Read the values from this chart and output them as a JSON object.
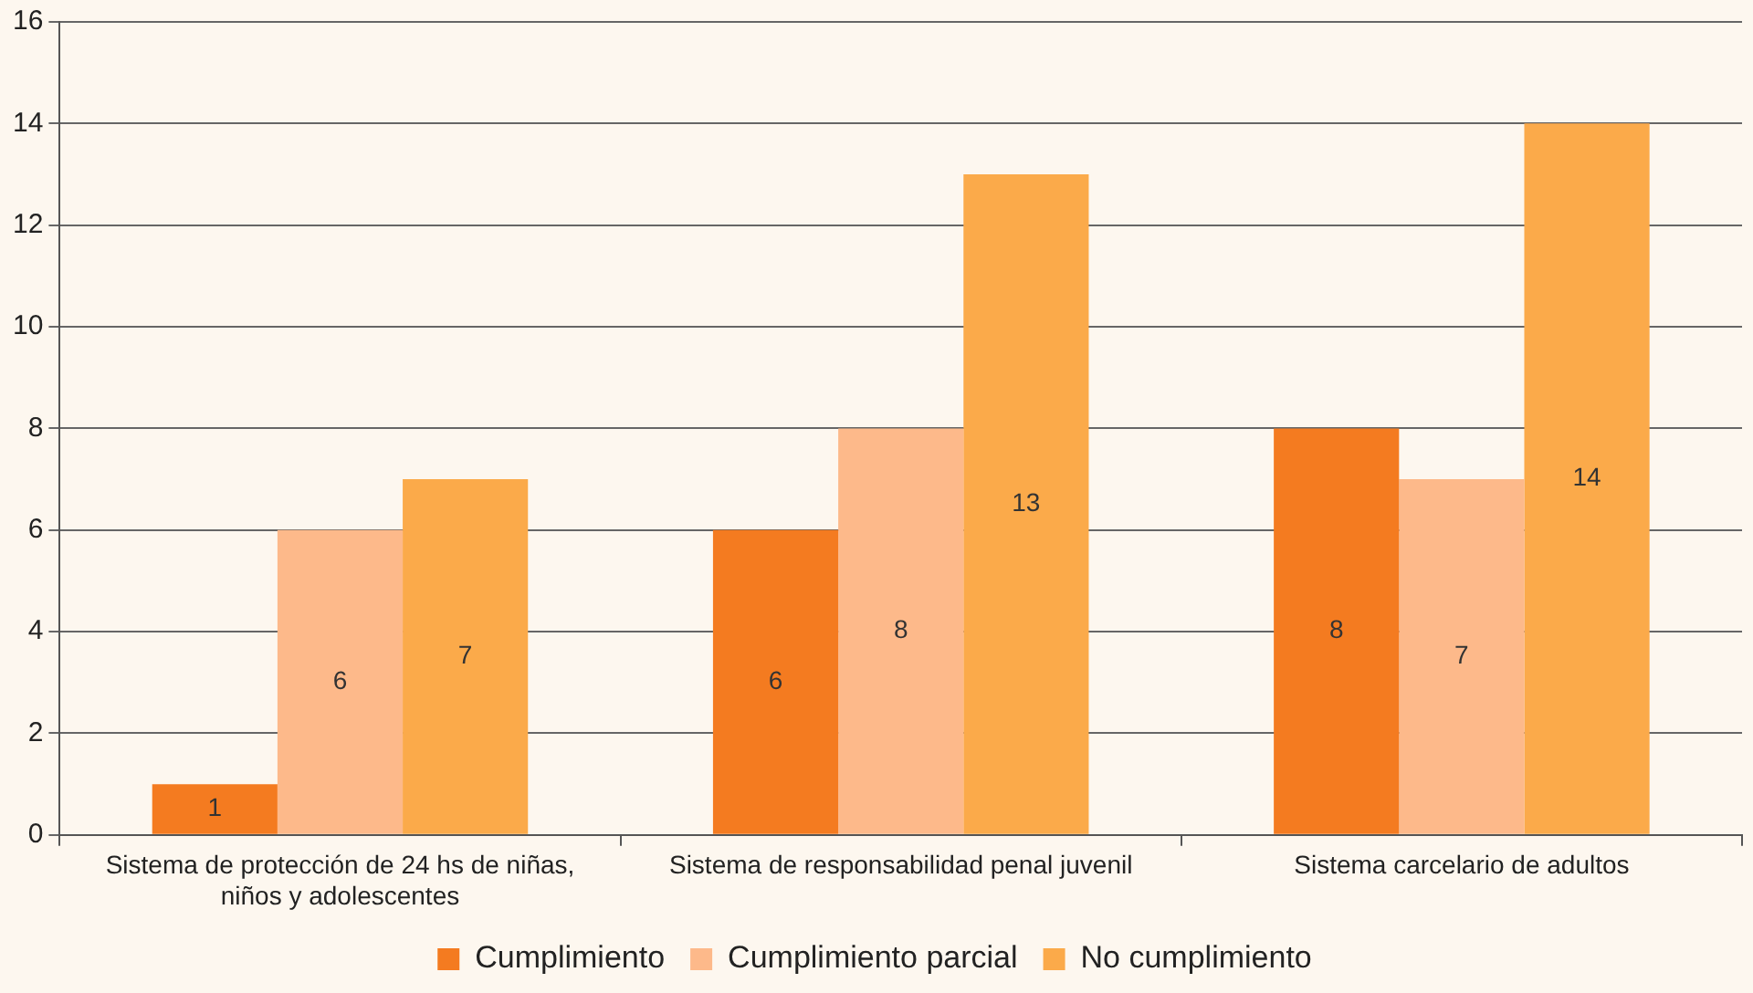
{
  "chart_data": {
    "type": "bar",
    "categories": [
      "Sistema de protección de 24 hs de niñas, niños y adolescentes",
      "Sistema de responsabilidad penal juvenil",
      "Sistema carcelario de adultos"
    ],
    "series": [
      {
        "name": "Cumplimiento",
        "color": "#f47b20",
        "values": [
          1,
          6,
          8
        ]
      },
      {
        "name": "Cumplimiento parcial",
        "color": "#fdb98a",
        "values": [
          6,
          8,
          7
        ]
      },
      {
        "name": "No cumplimiento",
        "color": "#fbaa4a",
        "values": [
          7,
          13,
          14
        ]
      }
    ],
    "ylim": [
      0,
      16
    ],
    "yticks": [
      0,
      2,
      4,
      6,
      8,
      10,
      12,
      14,
      16
    ],
    "grid": "y",
    "legend": "bottom",
    "data_labels": true
  }
}
